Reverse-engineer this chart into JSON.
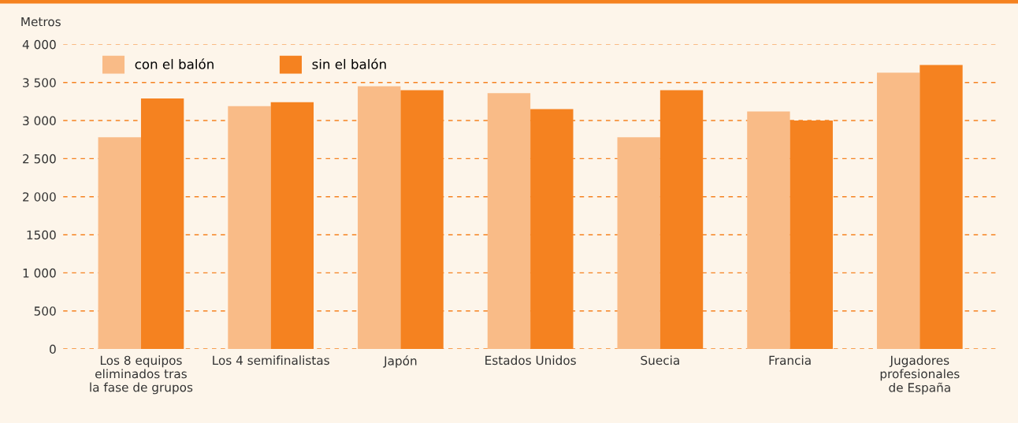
{
  "chart_data": {
    "type": "bar",
    "ylabel": "Metros",
    "categories": [
      "Los 8 equipos\neliminados tras\nla fase de grupos",
      "Los 4 semifinalistas",
      "Japón",
      "Estados Unidos",
      "Suecia",
      "Francia",
      "Jugadores\nprofesionales\nde España"
    ],
    "series": [
      {
        "name": "con el balón",
        "color": "#f9bb87",
        "values": [
          2780,
          3190,
          3450,
          3360,
          2780,
          3120,
          3630
        ]
      },
      {
        "name": "sin el balón",
        "color": "#f58220",
        "values": [
          3290,
          3240,
          3400,
          3150,
          3400,
          3000,
          3730
        ]
      }
    ],
    "ylim": [
      0,
      4000
    ],
    "yticks": [
      0,
      500,
      {
        "value": 1000,
        "label": "1 000"
      },
      {
        "value": 1500,
        "label": "1500"
      },
      {
        "value": 2000,
        "label": "2 000"
      },
      {
        "value": 2500,
        "label": "2 500"
      },
      {
        "value": 3000,
        "label": "3 000"
      },
      {
        "value": 3500,
        "label": "3 500"
      },
      {
        "value": 4000,
        "label": "4 000"
      }
    ],
    "grid": "y",
    "legend": "top left"
  }
}
